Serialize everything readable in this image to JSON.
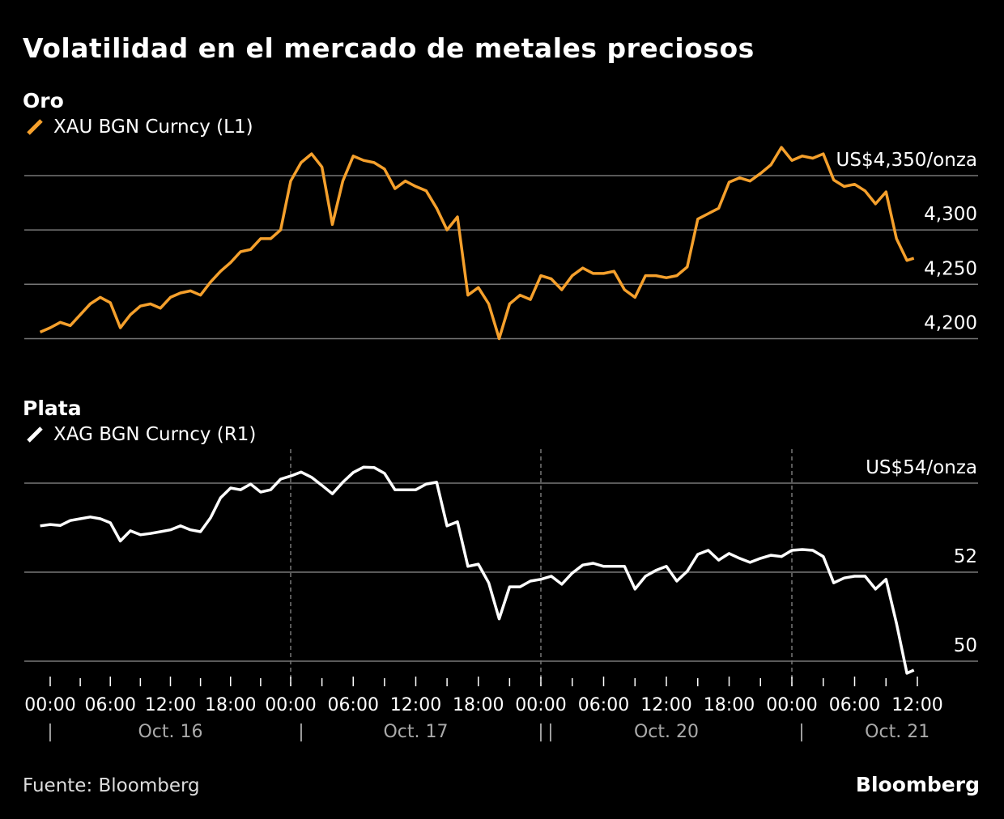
{
  "chart_data": [
    {
      "type": "line",
      "panel_title": "Oro",
      "title": "Volatilidad en el mercado de metales preciosos",
      "ylim": [
        4200,
        4375
      ],
      "yticks": [
        {
          "value": 4350,
          "label": "US$4,350/onza"
        },
        {
          "value": 4300,
          "label": "4,300"
        },
        {
          "value": 4250,
          "label": "4,250"
        },
        {
          "value": 4200,
          "label": "4,200"
        }
      ],
      "grid": true,
      "legend_placement": "top-left",
      "series": [
        {
          "name": "XAU BGN Curncy (L1)",
          "color": "#f5a02c",
          "values": [
            4206,
            4210,
            4215,
            4212,
            4222,
            4232,
            4238,
            4233,
            4210,
            4222,
            4230,
            4232,
            4228,
            4238,
            4242,
            4244,
            4240,
            4252,
            4262,
            4270,
            4280,
            4282,
            4292,
            4292,
            4300,
            4345,
            4362,
            4370,
            4358,
            4305,
            4345,
            4368,
            4364,
            4362,
            4356,
            4338,
            4345,
            4340,
            4336,
            4320,
            4300,
            4312,
            4240,
            4247,
            4232,
            4200,
            4232,
            4240,
            4236,
            4258,
            4255,
            4245,
            4258,
            4265,
            4260,
            4260,
            4262,
            4245,
            4238,
            4258,
            4258,
            4256,
            4258,
            4266,
            4310,
            4315,
            4320,
            4344,
            4348,
            4345,
            4352,
            4360,
            4376,
            4364,
            4368,
            4366,
            4370,
            4346,
            4340,
            4342,
            4336,
            4324,
            4335,
            4292,
            4272,
            4274
          ]
        }
      ]
    },
    {
      "type": "line",
      "panel_title": "Plata",
      "ylim": [
        49.5,
        54.5
      ],
      "yticks": [
        {
          "value": 54,
          "label": "US$54/onza"
        },
        {
          "value": 52,
          "label": "52"
        },
        {
          "value": 50,
          "label": "50"
        }
      ],
      "grid": true,
      "legend_placement": "top-left",
      "series": [
        {
          "name": "XAG BGN Curncy (R1)",
          "color": "#ffffff",
          "values": [
            53.04,
            53.07,
            53.05,
            53.16,
            53.2,
            53.24,
            53.2,
            53.11,
            52.7,
            52.93,
            52.84,
            52.87,
            52.91,
            52.95,
            53.04,
            52.95,
            52.91,
            53.22,
            53.67,
            53.89,
            53.85,
            53.98,
            53.8,
            53.85,
            54.09,
            54.16,
            54.25,
            54.13,
            53.95,
            53.76,
            54.02,
            54.24,
            54.36,
            54.35,
            54.22,
            53.85,
            53.85,
            53.85,
            53.98,
            54.02,
            53.04,
            53.13,
            52.13,
            52.18,
            51.76,
            50.95,
            51.67,
            51.67,
            51.8,
            51.84,
            51.91,
            51.73,
            51.98,
            52.16,
            52.2,
            52.13,
            52.13,
            52.13,
            51.62,
            51.91,
            52.04,
            52.13,
            51.8,
            52.02,
            52.4,
            52.49,
            52.27,
            52.42,
            52.31,
            52.22,
            52.31,
            52.38,
            52.35,
            52.49,
            52.51,
            52.49,
            52.35,
            51.76,
            51.87,
            51.91,
            51.91,
            51.62,
            51.84,
            50.85,
            49.73,
            49.8
          ]
        }
      ]
    }
  ],
  "x": [
    "Oct. 15 23:00",
    "Oct. 16 00:00",
    "Oct. 16 01:00",
    "Oct. 16 02:00",
    "Oct. 16 03:00",
    "Oct. 16 04:00",
    "Oct. 16 05:00",
    "Oct. 16 06:00",
    "Oct. 16 07:00",
    "Oct. 16 08:00",
    "Oct. 16 09:00",
    "Oct. 16 10:00",
    "Oct. 16 11:00",
    "Oct. 16 12:00",
    "Oct. 16 13:00",
    "Oct. 16 14:00",
    "Oct. 16 15:00",
    "Oct. 16 16:00",
    "Oct. 16 17:00",
    "Oct. 16 18:00",
    "Oct. 16 19:00",
    "Oct. 16 20:00",
    "Oct. 16 21:00",
    "Oct. 16 22:00",
    "Oct. 16 23:00",
    "Oct. 17 00:00",
    "Oct. 17 01:00",
    "Oct. 17 02:00",
    "Oct. 17 03:00",
    "Oct. 17 04:00",
    "Oct. 17 05:00",
    "Oct. 17 06:00",
    "Oct. 17 07:00",
    "Oct. 17 08:00",
    "Oct. 17 09:00",
    "Oct. 17 10:00",
    "Oct. 17 11:00",
    "Oct. 17 12:00",
    "Oct. 17 13:00",
    "Oct. 17 14:00",
    "Oct. 17 15:00",
    "Oct. 17 16:00",
    "Oct. 17 17:00",
    "Oct. 17 18:00",
    "Oct. 17 19:00",
    "Oct. 17 20:00",
    "Oct. 17 21:00",
    "Oct. 17 22:00",
    "Oct. 17 23:00",
    "Oct. 20 00:00",
    "Oct. 20 01:00",
    "Oct. 20 02:00",
    "Oct. 20 03:00",
    "Oct. 20 04:00",
    "Oct. 20 05:00",
    "Oct. 20 06:00",
    "Oct. 20 07:00",
    "Oct. 20 08:00",
    "Oct. 20 09:00",
    "Oct. 20 10:00",
    "Oct. 20 11:00",
    "Oct. 20 12:00",
    "Oct. 20 13:00",
    "Oct. 20 14:00",
    "Oct. 20 15:00",
    "Oct. 20 16:00",
    "Oct. 20 17:00",
    "Oct. 20 18:00",
    "Oct. 20 19:00",
    "Oct. 20 20:00",
    "Oct. 20 21:00",
    "Oct. 20 22:00",
    "Oct. 20 23:00",
    "Oct. 21 00:00",
    "Oct. 21 01:00",
    "Oct. 21 02:00",
    "Oct. 21 03:00",
    "Oct. 21 04:00",
    "Oct. 21 05:00",
    "Oct. 21 06:00",
    "Oct. 21 07:00",
    "Oct. 21 08:00",
    "Oct. 21 09:00",
    "Oct. 21 10:00",
    "Oct. 21 11:00",
    "Oct. 21 11:40"
  ],
  "xaxis": {
    "time_labels": [
      "00:00",
      "06:00",
      "12:00",
      "18:00"
    ],
    "days": [
      "Oct. 16",
      "Oct. 17",
      "Oct. 20",
      "Oct. 21"
    ],
    "separator": "|"
  },
  "header": {
    "title": "Volatilidad en el mercado de metales preciosos"
  },
  "footer": {
    "source": "Fuente: Bloomberg",
    "brand": "Bloomberg"
  }
}
